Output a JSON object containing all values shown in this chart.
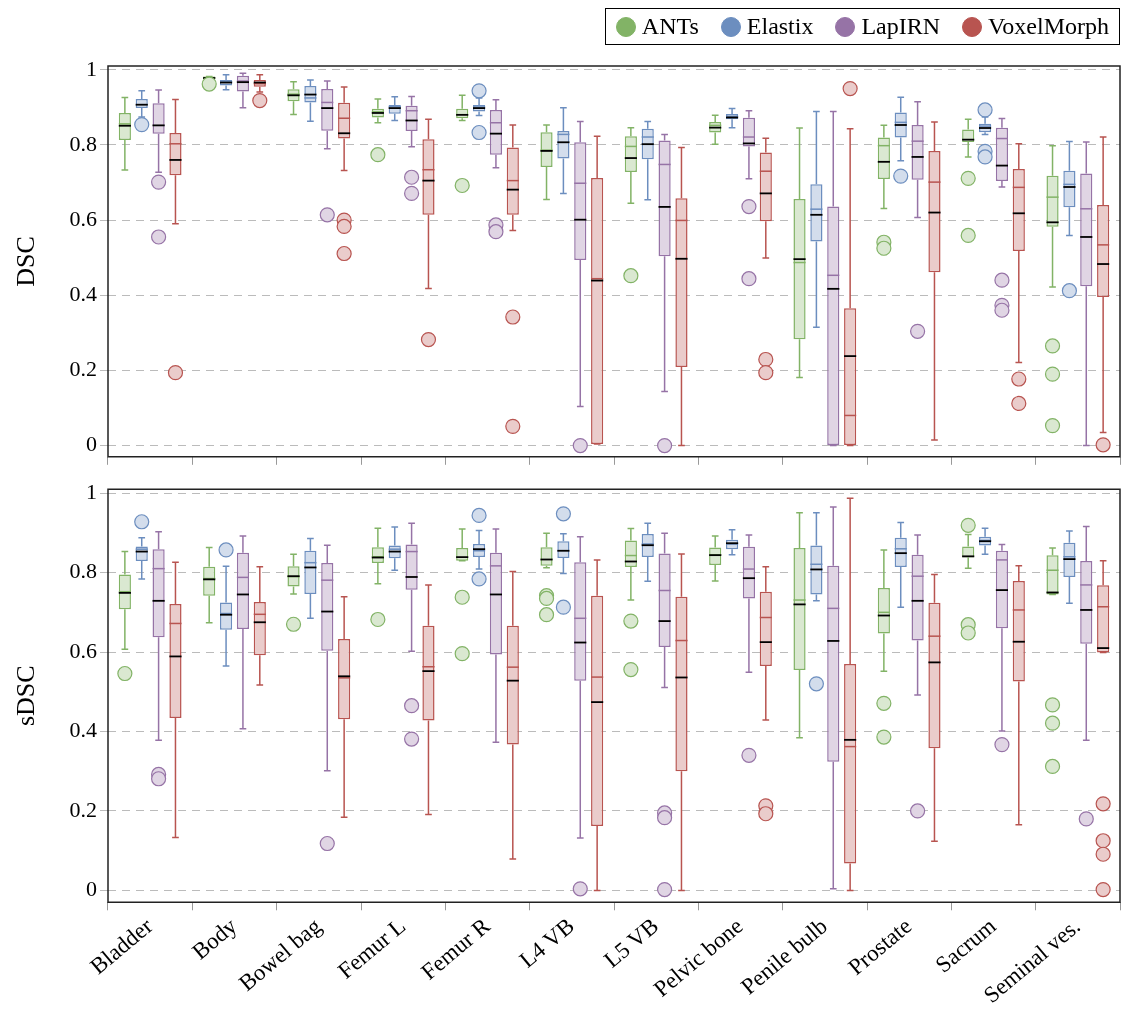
{
  "chart_data": [
    {
      "type": "box",
      "ylabel": "DSC",
      "categories": [
        null,
        null,
        null,
        null,
        null,
        null,
        null,
        null,
        null,
        null,
        null,
        null
      ],
      "ylim": [
        -0.03,
        1.01
      ],
      "yticks": [
        0,
        0.2,
        0.4,
        0.6,
        0.8,
        1
      ],
      "grid": "y",
      "legend": "top right",
      "tick_labels": "y",
      "series": [
        {
          "name": "ANTs",
          "color": "#82b366",
          "boxes": [
            {
              "low": 0.733,
              "q1": 0.813,
              "median": 0.851,
              "q3": 0.885,
              "high": 0.926,
              "mean": 0.856
            },
            {
              "low": 0.974,
              "q1": 0.974,
              "median": 0.978,
              "q3": 0.982,
              "high": 0.982,
              "mean": 0.979,
              "outliers": [
                0.962
              ]
            },
            {
              "low": 0.881,
              "q1": 0.916,
              "median": 0.932,
              "q3": 0.948,
              "high": 0.968,
              "mean": 0.935
            },
            {
              "low": 0.859,
              "q1": 0.873,
              "median": 0.885,
              "q3": 0.896,
              "high": 0.922,
              "mean": 0.888,
              "outliers": [
                0.774
              ]
            },
            {
              "low": 0.865,
              "q1": 0.871,
              "median": 0.88,
              "q3": 0.896,
              "high": 0.932,
              "outliers": [
                0.692
              ]
            },
            {
              "low": 0.655,
              "q1": 0.741,
              "median": 0.784,
              "q3": 0.834,
              "high": 0.853,
              "mean": 0.786
            },
            {
              "low": 0.645,
              "q1": 0.728,
              "median": 0.765,
              "q3": 0.823,
              "high": 0.846,
              "mean": 0.796,
              "outliers": [
                0.452
              ]
            },
            {
              "low": 0.802,
              "q1": 0.833,
              "median": 0.846,
              "q3": 0.861,
              "high": 0.879,
              "mean": 0.852
            },
            {
              "low": 0.181,
              "q1": 0.283,
              "median": 0.496,
              "q3": 0.656,
              "high": 0.845,
              "mean": 0.487
            },
            {
              "low": 0.631,
              "q1": 0.709,
              "median": 0.755,
              "q3": 0.82,
              "high": 0.852,
              "mean": 0.798,
              "outliers": [
                0.541,
                0.525
              ]
            },
            {
              "low": 0.768,
              "q1": 0.808,
              "median": 0.814,
              "q3": 0.841,
              "high": 0.868,
              "outliers": [
                0.711,
                0.559
              ]
            },
            {
              "low": 0.422,
              "q1": 0.582,
              "median": 0.594,
              "q3": 0.718,
              "high": 0.798,
              "mean": 0.661,
              "outliers": [
                0.265,
                0.19,
                0.053
              ]
            }
          ]
        },
        {
          "name": "Elastix",
          "color": "#6c8ebf",
          "boxes": [
            {
              "low": 0.874,
              "q1": 0.898,
              "median": 0.907,
              "q3": 0.922,
              "high": 0.944,
              "outliers": [
                0.854
              ]
            },
            {
              "low": 0.947,
              "q1": 0.958,
              "median": 0.966,
              "q3": 0.973,
              "high": 0.987,
              "mean": 0.968
            },
            {
              "low": 0.863,
              "q1": 0.913,
              "median": 0.934,
              "q3": 0.957,
              "high": 0.973,
              "mean": 0.925
            },
            {
              "low": 0.865,
              "q1": 0.883,
              "median": 0.898,
              "q3": 0.906,
              "high": 0.928,
              "mean": 0.902
            },
            {
              "low": 0.878,
              "q1": 0.889,
              "median": 0.898,
              "q3": 0.906,
              "high": 0.925,
              "mean": 0.901,
              "outliers": [
                0.944,
                0.833
              ]
            },
            {
              "low": 0.671,
              "q1": 0.764,
              "median": 0.807,
              "q3": 0.837,
              "high": 0.899,
              "mean": 0.828
            },
            {
              "low": 0.654,
              "q1": 0.762,
              "median": 0.802,
              "q3": 0.843,
              "high": 0.862,
              "mean": 0.821
            },
            {
              "low": 0.846,
              "q1": 0.868,
              "median": 0.873,
              "q3": 0.882,
              "high": 0.897,
              "mean": 0.876
            },
            {
              "low": 0.315,
              "q1": 0.543,
              "median": 0.614,
              "q3": 0.695,
              "high": 0.889,
              "mean": 0.629
            },
            {
              "low": 0.758,
              "q1": 0.82,
              "median": 0.853,
              "q3": 0.886,
              "high": 0.927,
              "mean": 0.86,
              "outliers": [
                0.717
              ]
            },
            {
              "low": 0.828,
              "q1": 0.834,
              "median": 0.845,
              "q3": 0.856,
              "high": 0.874,
              "mean": 0.85,
              "outliers": [
                0.893,
                0.783,
                0.768
              ]
            },
            {
              "low": 0.559,
              "q1": 0.634,
              "median": 0.688,
              "q3": 0.731,
              "high": 0.809,
              "mean": 0.695,
              "outliers": [
                0.412
              ]
            }
          ]
        },
        {
          "name": "LapIRN",
          "color": "#9673a6",
          "boxes": [
            {
              "low": 0.727,
              "q1": 0.83,
              "median": 0.852,
              "q3": 0.911,
              "high": 0.946,
              "outliers": [
                0.701,
                0.555
              ]
            },
            {
              "low": 0.899,
              "q1": 0.942,
              "median": 0.967,
              "q3": 0.984,
              "high": 0.991,
              "mean": 0.97
            },
            {
              "low": 0.79,
              "q1": 0.838,
              "median": 0.898,
              "q3": 0.949,
              "high": 0.97,
              "mean": 0.913,
              "outliers": [
                0.614
              ]
            },
            {
              "low": 0.795,
              "q1": 0.837,
              "median": 0.865,
              "q3": 0.904,
              "high": 0.929,
              "mean": 0.891,
              "outliers": [
                0.714,
                0.671
              ]
            },
            {
              "low": 0.739,
              "q1": 0.774,
              "median": 0.83,
              "q3": 0.893,
              "high": 0.92,
              "mean": 0.859,
              "outliers": [
                0.587,
                0.569
              ]
            },
            {
              "low": 0.104,
              "q1": 0.494,
              "median": 0.601,
              "q3": 0.807,
              "high": 0.862,
              "mean": 0.698,
              "outliers": [
                0
              ]
            },
            {
              "low": 0.144,
              "q1": 0.504,
              "median": 0.635,
              "q3": 0.812,
              "high": 0.828,
              "mean": 0.748,
              "outliers": [
                0
              ]
            },
            {
              "low": 0.71,
              "q1": 0.796,
              "median": 0.804,
              "q3": 0.872,
              "high": 0.891,
              "mean": 0.821,
              "outliers": [
                0.636,
                0.444
              ]
            },
            {
              "low": 0,
              "q1": 0,
              "median": 0.417,
              "q3": 0.636,
              "high": 0.889,
              "mean": 0.453
            },
            {
              "low": 0.607,
              "q1": 0.707,
              "median": 0.768,
              "q3": 0.853,
              "high": 0.915,
              "mean": 0.81,
              "outliers": [
                0.304
              ]
            },
            {
              "low": 0.688,
              "q1": 0.704,
              "median": 0.745,
              "q3": 0.846,
              "high": 0.87,
              "mean": 0.817,
              "outliers": [
                0.44,
                0.373,
                0.36
              ]
            },
            {
              "low": 0,
              "q1": 0.424,
              "median": 0.555,
              "q3": 0.724,
              "high": 0.808,
              "mean": 0.63
            }
          ]
        },
        {
          "name": "VoxelMorph",
          "color": "#b85450",
          "boxes": [
            {
              "low": 0.59,
              "q1": 0.719,
              "median": 0.76,
              "q3": 0.832,
              "high": 0.921,
              "mean": 0.803,
              "outliers": [
                0.194
              ]
            },
            {
              "low": 0.941,
              "q1": 0.955,
              "median": 0.966,
              "q3": 0.973,
              "high": 0.987,
              "mean": 0.963,
              "outliers": [
                0.918
              ]
            },
            {
              "low": 0.732,
              "q1": 0.817,
              "median": 0.831,
              "q3": 0.912,
              "high": 0.954,
              "mean": 0.871,
              "outliers": [
                0.6,
                0.583,
                0.511
              ]
            },
            {
              "low": 0.418,
              "q1": 0.614,
              "median": 0.705,
              "q3": 0.815,
              "high": 0.868,
              "mean": 0.734,
              "outliers": [
                0.282
              ]
            },
            {
              "low": 0.572,
              "q1": 0.614,
              "median": 0.681,
              "q3": 0.793,
              "high": 0.853,
              "mean": 0.705,
              "outliers": [
                0.342,
                0.051
              ]
            },
            {
              "low": 0.004,
              "q1": 0.004,
              "median": 0.439,
              "q3": 0.712,
              "high": 0.823,
              "mean": 0.444
            },
            {
              "low": 0,
              "q1": 0.209,
              "median": 0.497,
              "q3": 0.658,
              "high": 0.793,
              "mean": 0.599
            },
            {
              "low": 0.499,
              "q1": 0.597,
              "median": 0.671,
              "q3": 0.78,
              "high": 0.818,
              "mean": 0.73,
              "outliers": [
                0.229,
                0.194
              ]
            },
            {
              "low": 0,
              "q1": 0,
              "median": 0.238,
              "q3": 0.365,
              "high": 0.843,
              "mean": 0.08,
              "outliers": [
                0.95
              ]
            },
            {
              "low": 0.015,
              "q1": 0.461,
              "median": 0.62,
              "q3": 0.784,
              "high": 0.861,
              "mean": 0.701
            },
            {
              "low": 0.221,
              "q1": 0.518,
              "median": 0.618,
              "q3": 0.736,
              "high": 0.803,
              "mean": 0.687,
              "outliers": [
                0.177,
                0.112
              ]
            },
            {
              "low": 0.035,
              "q1": 0.395,
              "median": 0.483,
              "q3": 0.64,
              "high": 0.821,
              "mean": 0.534,
              "outliers": [
                0.002
              ]
            }
          ]
        }
      ]
    },
    {
      "type": "box",
      "ylabel": "sDSC",
      "categories": [
        "Bladder",
        "Body",
        "Bowel bag",
        "Femur L",
        "Femur R",
        "L4 VB",
        "L5 VB",
        "Pelvic bone",
        "Penile bulb",
        "Prostate",
        "Sacrum",
        "Seminal ves."
      ],
      "ylim": [
        -0.03,
        1.01
      ],
      "yticks": [
        0,
        0.2,
        0.4,
        0.6,
        0.8,
        1
      ],
      "grid": "y",
      "series": [
        {
          "color": "#82b366",
          "boxes": [
            {
              "low": 0.607,
              "q1": 0.708,
              "median": 0.749,
              "q3": 0.795,
              "high": 0.853,
              "mean": 0.752,
              "outliers": [
                0.546
              ]
            },
            {
              "low": 0.674,
              "q1": 0.742,
              "median": 0.783,
              "q3": 0.815,
              "high": 0.863,
              "mean": 0.785
            },
            {
              "low": 0.746,
              "q1": 0.765,
              "median": 0.791,
              "q3": 0.816,
              "high": 0.846,
              "mean": 0.79,
              "outliers": [
                0.67
              ]
            },
            {
              "low": 0.772,
              "q1": 0.824,
              "median": 0.838,
              "q3": 0.864,
              "high": 0.912,
              "mean": 0.84,
              "outliers": [
                0.682
              ]
            },
            {
              "low": 0.83,
              "q1": 0.83,
              "median": 0.839,
              "q3": 0.862,
              "high": 0.91,
              "outliers": [
                0.738,
                0.596
              ]
            },
            {
              "low": 0.812,
              "q1": 0.817,
              "median": 0.833,
              "q3": 0.864,
              "high": 0.899,
              "outliers": [
                0.742,
                0.735,
                0.694
              ]
            },
            {
              "low": 0.731,
              "q1": 0.814,
              "median": 0.828,
              "q3": 0.881,
              "high": 0.911,
              "mean": 0.843,
              "outliers": [
                0.678,
                0.556
              ]
            },
            {
              "low": 0.779,
              "q1": 0.819,
              "median": 0.844,
              "q3": 0.863,
              "high": 0.892,
              "mean": 0.845
            },
            {
              "low": 0.384,
              "q1": 0.555,
              "median": 0.72,
              "q3": 0.862,
              "high": 0.951,
              "mean": 0.731
            },
            {
              "low": 0.552,
              "q1": 0.647,
              "median": 0.692,
              "q3": 0.761,
              "high": 0.857,
              "mean": 0.7,
              "outliers": [
                0.471,
                0.386
              ]
            },
            {
              "low": 0.811,
              "q1": 0.838,
              "median": 0.841,
              "q3": 0.866,
              "high": 0.896,
              "outliers": [
                0.919,
                0.669,
                0.648
              ]
            },
            {
              "low": 0.745,
              "q1": 0.745,
              "median": 0.75,
              "q3": 0.844,
              "high": 0.862,
              "mean": 0.806,
              "outliers": [
                0.467,
                0.421,
                0.312
              ]
            }
          ]
        },
        {
          "color": "#6c8ebf",
          "boxes": [
            {
              "low": 0.784,
              "q1": 0.829,
              "median": 0.853,
              "q3": 0.866,
              "high": 0.888,
              "mean": 0.859,
              "outliers": [
                0.928
              ]
            },
            {
              "low": 0.565,
              "q1": 0.656,
              "median": 0.694,
              "q3": 0.725,
              "high": 0.816,
              "mean": 0.697,
              "outliers": [
                0.857
              ]
            },
            {
              "low": 0.685,
              "q1": 0.746,
              "median": 0.813,
              "q3": 0.855,
              "high": 0.886,
              "mean": 0.825
            },
            {
              "low": 0.806,
              "q1": 0.836,
              "median": 0.853,
              "q3": 0.868,
              "high": 0.915,
              "mean": 0.859
            },
            {
              "low": 0.809,
              "q1": 0.839,
              "median": 0.859,
              "q3": 0.872,
              "high": 0.906,
              "mean": 0.855,
              "outliers": [
                0.944,
                0.784
              ]
            },
            {
              "low": 0.798,
              "q1": 0.837,
              "median": 0.855,
              "q3": 0.879,
              "high": 0.898,
              "outliers": [
                0.948,
                0.713
              ]
            },
            {
              "low": 0.778,
              "q1": 0.839,
              "median": 0.869,
              "q3": 0.897,
              "high": 0.924,
              "mean": 0.872
            },
            {
              "low": 0.845,
              "q1": 0.859,
              "median": 0.874,
              "q3": 0.883,
              "high": 0.908,
              "mean": 0.872
            },
            {
              "low": 0.729,
              "q1": 0.745,
              "median": 0.808,
              "q3": 0.868,
              "high": 0.951,
              "mean": 0.821,
              "outliers": [
                0.52
              ]
            },
            {
              "low": 0.713,
              "q1": 0.814,
              "median": 0.849,
              "q3": 0.888,
              "high": 0.926,
              "mean": 0.86
            },
            {
              "low": 0.846,
              "q1": 0.868,
              "median": 0.879,
              "q3": 0.89,
              "high": 0.912,
              "mean": 0.881
            },
            {
              "low": 0.723,
              "q1": 0.789,
              "median": 0.834,
              "q3": 0.875,
              "high": 0.905,
              "mean": 0.84
            }
          ]
        },
        {
          "color": "#9673a6",
          "boxes": [
            {
              "low": 0.378,
              "q1": 0.637,
              "median": 0.729,
              "q3": 0.859,
              "high": 0.903,
              "mean": 0.81,
              "outliers": [
                0.292,
                0.281
              ]
            },
            {
              "low": 0.407,
              "q1": 0.658,
              "median": 0.745,
              "q3": 0.85,
              "high": 0.892,
              "mean": 0.788
            },
            {
              "low": 0.301,
              "q1": 0.603,
              "median": 0.702,
              "q3": 0.824,
              "high": 0.869,
              "mean": 0.781,
              "outliers": [
                0.118
              ]
            },
            {
              "low": 0.602,
              "q1": 0.757,
              "median": 0.789,
              "q3": 0.871,
              "high": 0.924,
              "mean": 0.853,
              "outliers": [
                0.465,
                0.381
              ]
            },
            {
              "low": 0.373,
              "q1": 0.594,
              "median": 0.745,
              "q3": 0.85,
              "high": 0.91,
              "mean": 0.817
            },
            {
              "low": 0.132,
              "q1": 0.528,
              "median": 0.624,
              "q3": 0.826,
              "high": 0.89,
              "mean": 0.685,
              "outliers": [
                0.004
              ]
            },
            {
              "low": 0.511,
              "q1": 0.613,
              "median": 0.678,
              "q3": 0.848,
              "high": 0.899,
              "mean": 0.755,
              "outliers": [
                0.195,
                0.183,
                0.002
              ]
            },
            {
              "low": 0.549,
              "q1": 0.735,
              "median": 0.786,
              "q3": 0.865,
              "high": 0.895,
              "mean": 0.809,
              "outliers": [
                0.34
              ]
            },
            {
              "low": 0.004,
              "q1": 0.324,
              "median": 0.628,
              "q3": 0.817,
              "high": 0.965,
              "mean": 0.71
            },
            {
              "low": 0.492,
              "q1": 0.629,
              "median": 0.729,
              "q3": 0.845,
              "high": 0.895,
              "mean": 0.791,
              "outliers": [
                0.2
              ]
            },
            {
              "low": 0.401,
              "q1": 0.66,
              "median": 0.756,
              "q3": 0.855,
              "high": 0.871,
              "mean": 0.832,
              "outliers": [
                0.367
              ]
            },
            {
              "low": 0.378,
              "q1": 0.621,
              "median": 0.706,
              "q3": 0.829,
              "high": 0.916,
              "mean": 0.769,
              "outliers": [
                0.18
              ]
            }
          ]
        },
        {
          "color": "#b85450",
          "boxes": [
            {
              "low": 0.133,
              "q1": 0.434,
              "median": 0.589,
              "q3": 0.721,
              "high": 0.826,
              "mean": 0.672
            },
            {
              "low": 0.517,
              "q1": 0.592,
              "median": 0.675,
              "q3": 0.726,
              "high": 0.815,
              "mean": 0.695
            },
            {
              "low": 0.184,
              "q1": 0.431,
              "median": 0.539,
              "q3": 0.633,
              "high": 0.739,
              "mean": 0.535
            },
            {
              "low": 0.191,
              "q1": 0.428,
              "median": 0.552,
              "q3": 0.666,
              "high": 0.769,
              "mean": 0.563
            },
            {
              "low": 0.079,
              "q1": 0.367,
              "median": 0.528,
              "q3": 0.666,
              "high": 0.803,
              "mean": 0.562
            },
            {
              "low": 0,
              "q1": 0.162,
              "median": 0.474,
              "q3": 0.742,
              "high": 0.832,
              "mean": 0.537
            },
            {
              "low": 0,
              "q1": 0.3,
              "median": 0.536,
              "q3": 0.739,
              "high": 0.847,
              "mean": 0.629
            },
            {
              "low": 0.429,
              "q1": 0.565,
              "median": 0.625,
              "q3": 0.752,
              "high": 0.815,
              "mean": 0.687,
              "outliers": [
                0.213,
                0.193
              ]
            },
            {
              "low": 0,
              "q1": 0.068,
              "median": 0.379,
              "q3": 0.57,
              "high": 0.987,
              "mean": 0.362
            },
            {
              "low": 0.124,
              "q1": 0.358,
              "median": 0.574,
              "q3": 0.724,
              "high": 0.795,
              "mean": 0.64
            },
            {
              "low": 0.165,
              "q1": 0.526,
              "median": 0.626,
              "q3": 0.779,
              "high": 0.817,
              "mean": 0.706
            },
            {
              "low": 0.599,
              "q1": 0.599,
              "median": 0.61,
              "q3": 0.768,
              "high": 0.83,
              "mean": 0.714,
              "outliers": [
                0.218,
                0.125,
                0.091,
                0.002
              ]
            }
          ]
        }
      ]
    }
  ]
}
